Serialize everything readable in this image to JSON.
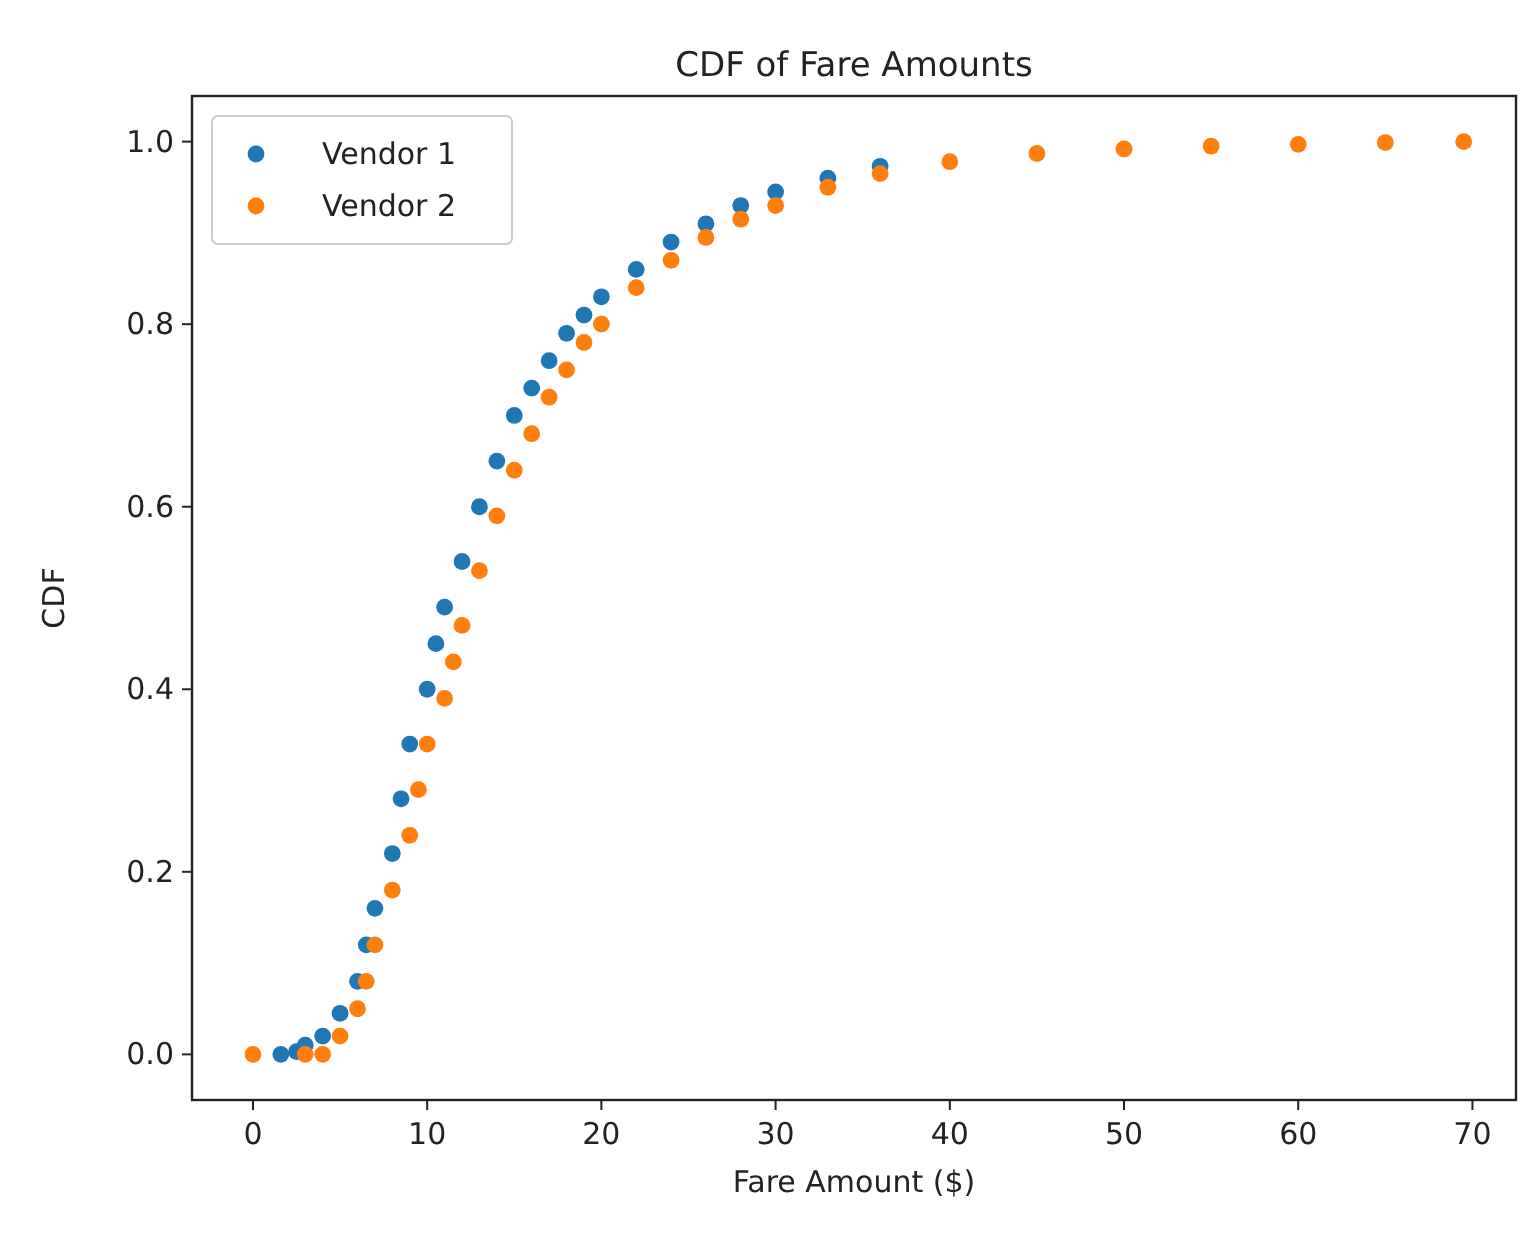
{
  "chart_data": {
    "type": "scatter",
    "title": "CDF of Fare Amounts",
    "xlabel": "Fare Amount ($)",
    "ylabel": "CDF",
    "xlim": [
      -3.5,
      72.5
    ],
    "ylim": [
      -0.05,
      1.05
    ],
    "xticks": [
      0,
      10,
      20,
      30,
      40,
      50,
      60,
      70
    ],
    "yticks": [
      {
        "value": 0,
        "label": "0.0"
      },
      {
        "value": 0.2,
        "label": "0.2"
      },
      {
        "value": 0.4,
        "label": "0.4"
      },
      {
        "value": 0.6,
        "label": "0.6"
      },
      {
        "value": 0.8,
        "label": "0.8"
      },
      {
        "value": 1,
        "label": "1.0"
      }
    ],
    "grid": false,
    "legend": "top left",
    "marker": "circle",
    "series": [
      {
        "name": "Vendor 1",
        "color": "#1f77b4",
        "x": [
          1.6,
          2.5,
          3,
          4,
          5,
          6,
          6.5,
          7,
          8,
          8.5,
          9,
          10,
          10.5,
          11,
          12,
          13,
          14,
          15,
          16,
          17,
          18,
          19,
          20,
          22,
          24,
          26,
          28,
          30,
          33,
          36
        ],
        "values": [
          0,
          0.003,
          0.01,
          0.02,
          0.045,
          0.08,
          0.12,
          0.16,
          0.22,
          0.28,
          0.34,
          0.4,
          0.45,
          0.49,
          0.54,
          0.6,
          0.65,
          0.7,
          0.73,
          0.76,
          0.79,
          0.81,
          0.83,
          0.86,
          0.89,
          0.91,
          0.93,
          0.945,
          0.96,
          0.973
        ]
      },
      {
        "name": "Vendor 2",
        "color": "#ff7f0e",
        "x": [
          0,
          3,
          4,
          5,
          6,
          6.5,
          7,
          8,
          9,
          9.5,
          10,
          11,
          11.5,
          12,
          13,
          14,
          15,
          16,
          17,
          18,
          19,
          20,
          22,
          24,
          26,
          28,
          30,
          33,
          36,
          40,
          45,
          50,
          55,
          60,
          65,
          69.5
        ],
        "values": [
          0,
          0,
          0,
          0.02,
          0.05,
          0.08,
          0.12,
          0.18,
          0.24,
          0.29,
          0.34,
          0.39,
          0.43,
          0.47,
          0.53,
          0.59,
          0.64,
          0.68,
          0.72,
          0.75,
          0.78,
          0.8,
          0.84,
          0.87,
          0.895,
          0.915,
          0.93,
          0.95,
          0.965,
          0.978,
          0.987,
          0.992,
          0.995,
          0.997,
          0.999,
          1
        ]
      }
    ]
  }
}
